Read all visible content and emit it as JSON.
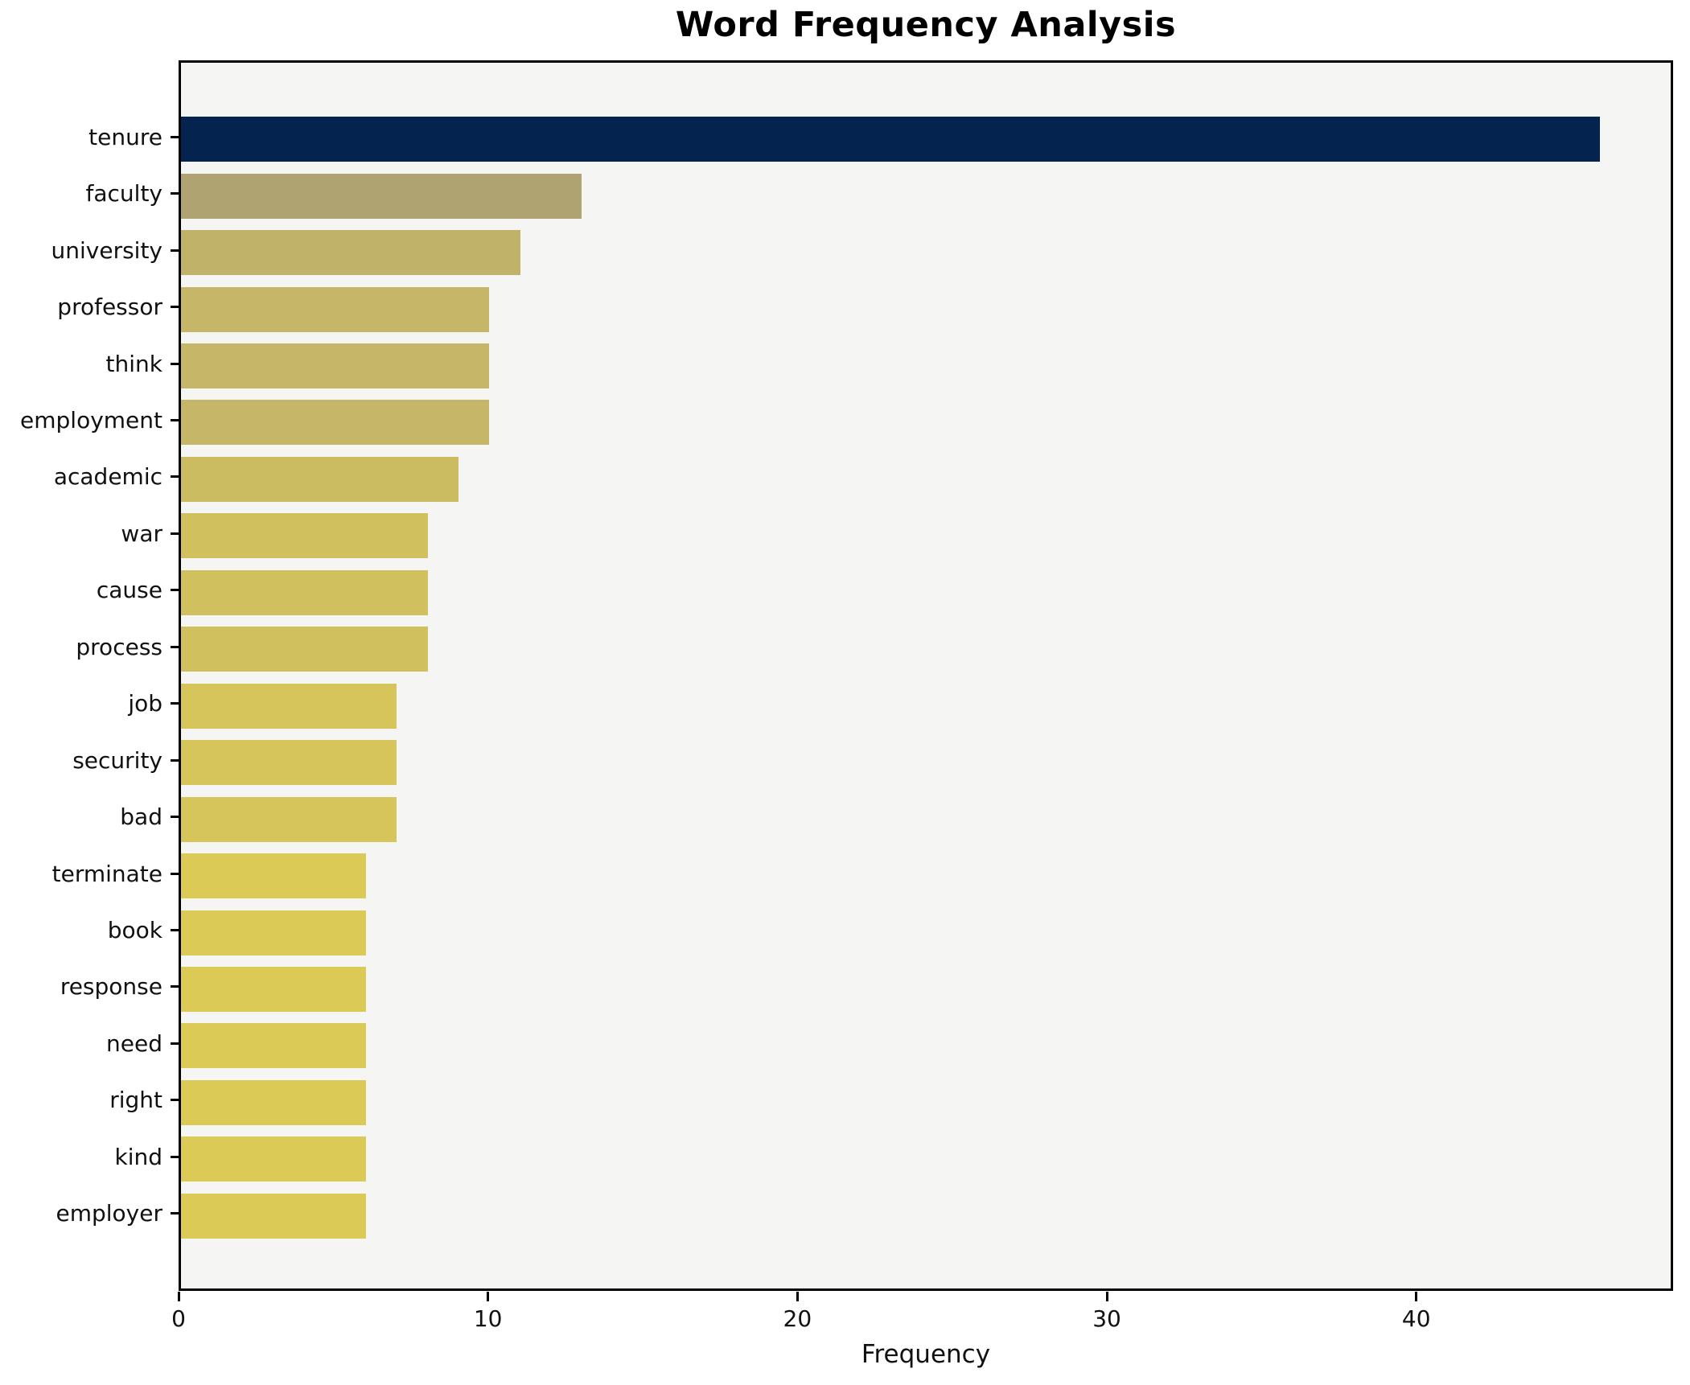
{
  "chart_data": {
    "type": "bar",
    "orientation": "horizontal",
    "title": "Word Frequency Analysis",
    "xlabel": "Frequency",
    "ylabel": "",
    "categories": [
      "tenure",
      "faculty",
      "university",
      "professor",
      "think",
      "employment",
      "academic",
      "war",
      "cause",
      "process",
      "job",
      "security",
      "bad",
      "terminate",
      "book",
      "response",
      "need",
      "right",
      "kind",
      "employer"
    ],
    "values": [
      46,
      13,
      11,
      10,
      10,
      10,
      9,
      8,
      8,
      8,
      7,
      7,
      7,
      6,
      6,
      6,
      6,
      6,
      6,
      6
    ],
    "bar_colors": [
      "#04234e",
      "#aea371",
      "#c0b269",
      "#c5b767",
      "#c5b767",
      "#c5b767",
      "#cbbc62",
      "#d0c15e",
      "#d0c15e",
      "#d0c15e",
      "#d6c55a",
      "#d6c55a",
      "#d6c55a",
      "#dcca56",
      "#dcca56",
      "#dcca56",
      "#dcca56",
      "#dcca56",
      "#dcca56",
      "#dcca56"
    ],
    "xlim": [
      0,
      48.3
    ],
    "xticks": [
      0,
      10,
      20,
      30,
      40
    ],
    "grid": false,
    "legend_position": "none",
    "plot_background": "#f5f5f3",
    "figure_background": "#ffffff",
    "spine_color": "#000000",
    "text_color": "#111111"
  }
}
